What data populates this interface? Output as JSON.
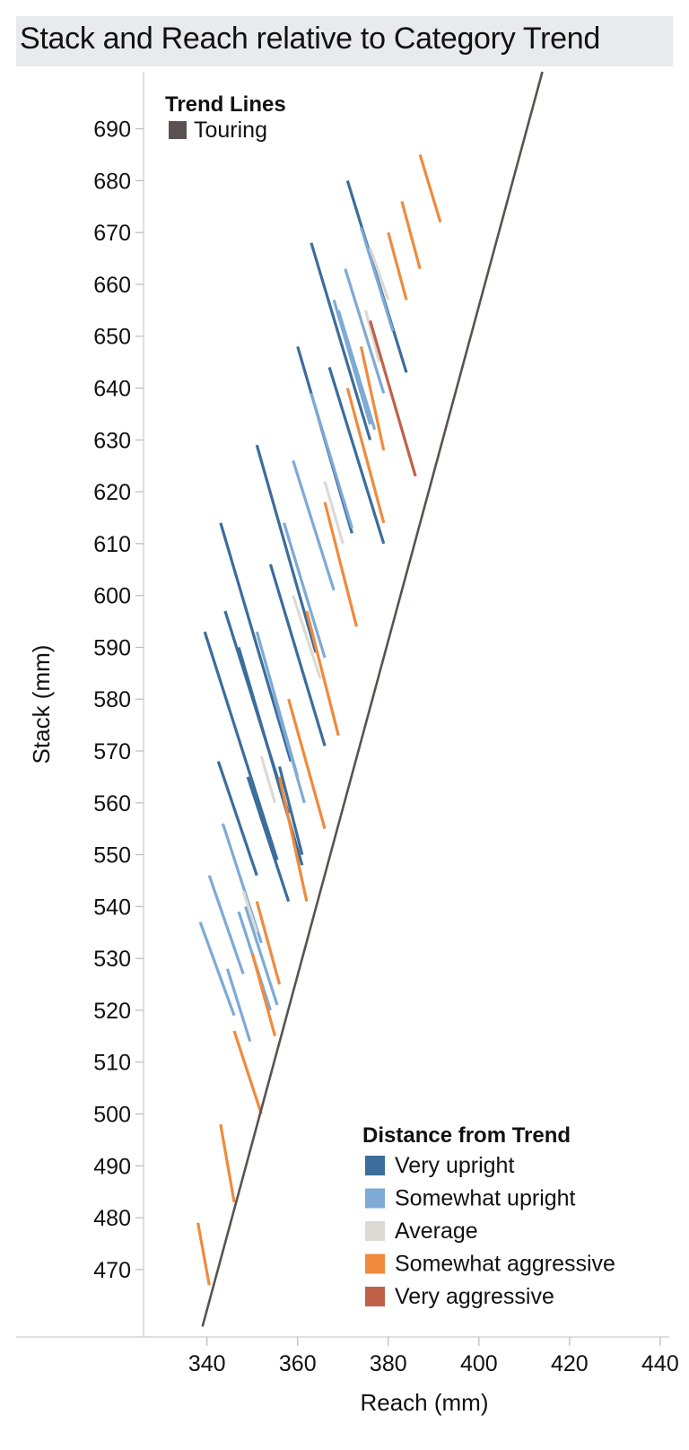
{
  "chart_data": {
    "type": "line",
    "title": "Stack and Reach relative to Category Trend",
    "xlabel": "Reach (mm)",
    "ylabel": "Stack (mm)",
    "xlim": [
      326,
      442
    ],
    "ylim": [
      457,
      701
    ],
    "x_ticks": [
      340,
      360,
      380,
      400,
      420,
      440
    ],
    "y_ticks": [
      470,
      480,
      490,
      500,
      510,
      520,
      530,
      540,
      550,
      560,
      570,
      580,
      590,
      600,
      610,
      620,
      630,
      640,
      650,
      660,
      670,
      680,
      690
    ],
    "trend_line": {
      "name": "Touring",
      "color": "#5a5250",
      "points": [
        [
          339,
          459
        ],
        [
          414,
          701
        ]
      ]
    },
    "legend_trend_title": "Trend Lines",
    "legend_trend_items": [
      {
        "label": "Touring",
        "color": "#5a5250"
      }
    ],
    "legend_distance_title": "Distance from Trend",
    "legend_distance_items": [
      {
        "label": "Very upright",
        "color": "#3c6d9b"
      },
      {
        "label": "Somewhat upright",
        "color": "#7eaad6"
      },
      {
        "label": "Average",
        "color": "#dcdad3"
      },
      {
        "label": "Somewhat aggressive",
        "color": "#f08a3c"
      },
      {
        "label": "Very aggressive",
        "color": "#c0614a"
      }
    ],
    "segments": [
      {
        "c": "Somewhat upright",
        "x1": 338.5,
        "y1": 537,
        "x2": 346.0,
        "y2": 519
      },
      {
        "c": "Somewhat upright",
        "x1": 340.5,
        "y1": 546,
        "x2": 348.0,
        "y2": 527
      },
      {
        "c": "Somewhat upright",
        "x1": 344.5,
        "y1": 528,
        "x2": 349.5,
        "y2": 514
      },
      {
        "c": "Somewhat upright",
        "x1": 343.5,
        "y1": 556,
        "x2": 352.0,
        "y2": 533
      },
      {
        "c": "Somewhat upright",
        "x1": 347.0,
        "y1": 539,
        "x2": 354.0,
        "y2": 520
      },
      {
        "c": "Somewhat upright",
        "x1": 348.5,
        "y1": 540,
        "x2": 355.5,
        "y2": 521
      },
      {
        "c": "Very upright",
        "x1": 342.5,
        "y1": 568,
        "x2": 351.0,
        "y2": 546
      },
      {
        "c": "Very upright",
        "x1": 339.5,
        "y1": 593,
        "x2": 355.5,
        "y2": 549
      },
      {
        "c": "Very upright",
        "x1": 343.0,
        "y1": 614,
        "x2": 358.5,
        "y2": 568
      },
      {
        "c": "Very upright",
        "x1": 344.0,
        "y1": 597,
        "x2": 358.0,
        "y2": 558
      },
      {
        "c": "Very upright",
        "x1": 347.0,
        "y1": 590,
        "x2": 361.0,
        "y2": 548
      },
      {
        "c": "Very upright",
        "x1": 349.0,
        "y1": 565,
        "x2": 358.0,
        "y2": 541
      },
      {
        "c": "Very upright",
        "x1": 351.0,
        "y1": 629,
        "x2": 364.0,
        "y2": 589
      },
      {
        "c": "Very upright",
        "x1": 354.0,
        "y1": 606,
        "x2": 366.0,
        "y2": 571
      },
      {
        "c": "Very upright",
        "x1": 356.0,
        "y1": 567,
        "x2": 361.0,
        "y2": 550
      },
      {
        "c": "Very upright",
        "x1": 360.0,
        "y1": 648,
        "x2": 372.0,
        "y2": 612
      },
      {
        "c": "Very upright",
        "x1": 363.0,
        "y1": 668,
        "x2": 376.0,
        "y2": 630
      },
      {
        "c": "Very upright",
        "x1": 371.0,
        "y1": 680,
        "x2": 384.0,
        "y2": 643
      },
      {
        "c": "Very upright",
        "x1": 367.0,
        "y1": 644,
        "x2": 379.0,
        "y2": 610
      },
      {
        "c": "Somewhat upright",
        "x1": 351.0,
        "y1": 593,
        "x2": 360.0,
        "y2": 565
      },
      {
        "c": "Somewhat upright",
        "x1": 355.0,
        "y1": 580,
        "x2": 361.5,
        "y2": 560
      },
      {
        "c": "Somewhat upright",
        "x1": 357.0,
        "y1": 614,
        "x2": 366.0,
        "y2": 588
      },
      {
        "c": "Somewhat upright",
        "x1": 359.0,
        "y1": 626,
        "x2": 368.0,
        "y2": 601
      },
      {
        "c": "Somewhat upright",
        "x1": 363.0,
        "y1": 639,
        "x2": 372.0,
        "y2": 613
      },
      {
        "c": "Somewhat upright",
        "x1": 368.0,
        "y1": 657,
        "x2": 376.0,
        "y2": 633
      },
      {
        "c": "Somewhat upright",
        "x1": 370.5,
        "y1": 663,
        "x2": 379.0,
        "y2": 639
      },
      {
        "c": "Somewhat upright",
        "x1": 374.0,
        "y1": 671,
        "x2": 381.0,
        "y2": 651
      },
      {
        "c": "Somewhat upright",
        "x1": 369.0,
        "y1": 655,
        "x2": 377.0,
        "y2": 632
      },
      {
        "c": "Average",
        "x1": 359.0,
        "y1": 600,
        "x2": 365.0,
        "y2": 584
      },
      {
        "c": "Average",
        "x1": 366.0,
        "y1": 622,
        "x2": 370.0,
        "y2": 610
      },
      {
        "c": "Average",
        "x1": 375.0,
        "y1": 655,
        "x2": 378.0,
        "y2": 645
      },
      {
        "c": "Average",
        "x1": 376.0,
        "y1": 667,
        "x2": 380.0,
        "y2": 657
      },
      {
        "c": "Average",
        "x1": 352.0,
        "y1": 569,
        "x2": 355.0,
        "y2": 560
      },
      {
        "c": "Average",
        "x1": 348.0,
        "y1": 543,
        "x2": 351.0,
        "y2": 535
      },
      {
        "c": "Somewhat aggressive",
        "x1": 351.0,
        "y1": 541,
        "x2": 356.0,
        "y2": 525
      },
      {
        "c": "Somewhat aggressive",
        "x1": 350.0,
        "y1": 531,
        "x2": 355.0,
        "y2": 515
      },
      {
        "c": "Somewhat aggressive",
        "x1": 346.0,
        "y1": 516,
        "x2": 352.0,
        "y2": 500
      },
      {
        "c": "Somewhat aggressive",
        "x1": 343.0,
        "y1": 498,
        "x2": 346.0,
        "y2": 483
      },
      {
        "c": "Somewhat aggressive",
        "x1": 338.0,
        "y1": 479,
        "x2": 340.5,
        "y2": 467
      },
      {
        "c": "Somewhat aggressive",
        "x1": 356.0,
        "y1": 565,
        "x2": 362.0,
        "y2": 541
      },
      {
        "c": "Somewhat aggressive",
        "x1": 358.0,
        "y1": 580,
        "x2": 366.0,
        "y2": 555
      },
      {
        "c": "Somewhat aggressive",
        "x1": 362.0,
        "y1": 597,
        "x2": 369.0,
        "y2": 573
      },
      {
        "c": "Somewhat aggressive",
        "x1": 366.0,
        "y1": 618,
        "x2": 373.0,
        "y2": 594
      },
      {
        "c": "Somewhat aggressive",
        "x1": 371.0,
        "y1": 640,
        "x2": 379.0,
        "y2": 614
      },
      {
        "c": "Somewhat aggressive",
        "x1": 374.0,
        "y1": 648,
        "x2": 379.0,
        "y2": 628
      },
      {
        "c": "Somewhat aggressive",
        "x1": 380.0,
        "y1": 670,
        "x2": 384.0,
        "y2": 657
      },
      {
        "c": "Somewhat aggressive",
        "x1": 383.0,
        "y1": 676,
        "x2": 387.0,
        "y2": 663
      },
      {
        "c": "Somewhat aggressive",
        "x1": 387.0,
        "y1": 685,
        "x2": 391.5,
        "y2": 672
      },
      {
        "c": "Very aggressive",
        "x1": 376.0,
        "y1": 653,
        "x2": 386.0,
        "y2": 623
      }
    ]
  }
}
